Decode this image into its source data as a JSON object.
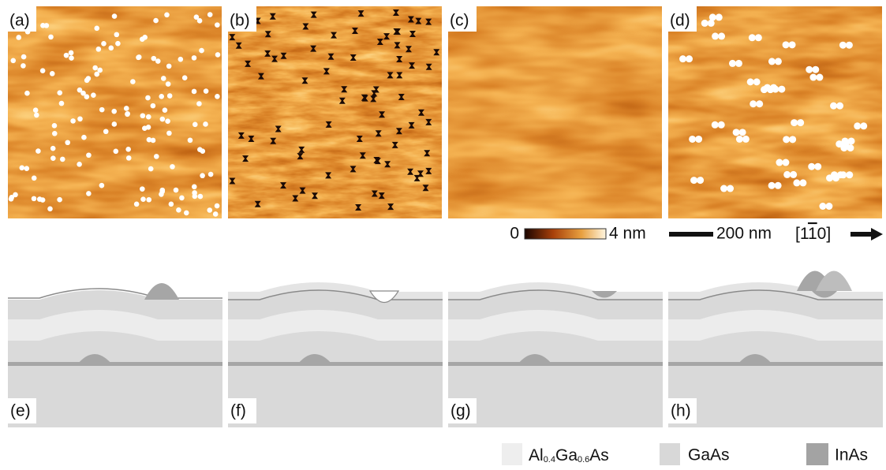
{
  "afm_panels": {
    "labels": [
      "(a)",
      "(b)",
      "(c)",
      "(d)"
    ]
  },
  "colorbar": {
    "min": "0",
    "max": "4 nm"
  },
  "scalebar": {
    "label": "200 nm"
  },
  "direction": {
    "open": "[1",
    "bar": "1",
    "close": "0]"
  },
  "schematic_panels": {
    "labels": [
      "(e)",
      "(f)",
      "(g)",
      "(h)"
    ]
  },
  "legend": {
    "algaas": [
      "Al",
      "0.4",
      "Ga",
      "0.6",
      "As"
    ],
    "gaas": "GaAs",
    "inas": "InAs"
  }
}
